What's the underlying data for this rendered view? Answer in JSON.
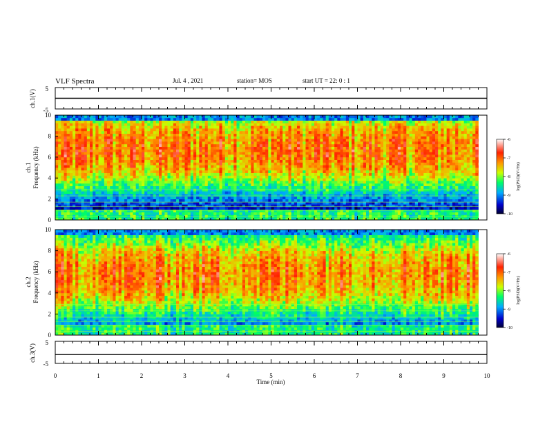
{
  "header": {
    "title": "VLF Spectra",
    "date": "Jul. 4 , 2021",
    "station": "station= MOS",
    "start": "start UT = 22: 0 : 1"
  },
  "chart_data": [
    {
      "type": "line",
      "name": "ch.1 waveform",
      "ylabel": "ch.1(V)",
      "yticks": [
        "5",
        "-5"
      ],
      "ylim": [
        -5,
        5
      ],
      "xlim": [
        0,
        10
      ],
      "level": 0
    },
    {
      "type": "heatmap",
      "name": "ch.1 spectrogram",
      "ylabel_channel": "ch.1",
      "ylabel": "Frequency (kHz)",
      "yticks": [
        "0",
        "2",
        "4",
        "6",
        "8",
        "10"
      ],
      "ylim": [
        0,
        10
      ],
      "xlim": [
        0,
        10
      ],
      "intense_band_khz": [
        4.5,
        9.0
      ],
      "colorbar": {
        "label": "log(PSD)(V²/Hz)",
        "ticks": [
          "-6",
          "-7",
          "-8",
          "-9",
          "-10"
        ],
        "range": [
          -10,
          -6
        ]
      }
    },
    {
      "type": "heatmap",
      "name": "ch.2 spectrogram",
      "ylabel_channel": "ch.2",
      "ylabel": "Frequency (kHz)",
      "yticks": [
        "0",
        "2",
        "4",
        "6",
        "8",
        "10"
      ],
      "ylim": [
        0,
        10
      ],
      "xlim": [
        0,
        10
      ],
      "intense_band_khz": [
        3.5,
        8.0
      ],
      "colorbar": {
        "label": "log(PSD)(V²/Hz)",
        "ticks": [
          "-6",
          "-7",
          "-8",
          "-9",
          "-10"
        ],
        "range": [
          -10,
          -6
        ]
      }
    },
    {
      "type": "line",
      "name": "ch.3 waveform",
      "ylabel": "ch.3(V)",
      "yticks": [
        "5",
        "-5"
      ],
      "ylim": [
        -5,
        5
      ],
      "xlim": [
        0,
        10
      ],
      "level": -1,
      "xlabel": "Time (min)",
      "xticks": [
        "0",
        "1",
        "2",
        "3",
        "4",
        "5",
        "6",
        "7",
        "8",
        "9",
        "10"
      ]
    }
  ]
}
